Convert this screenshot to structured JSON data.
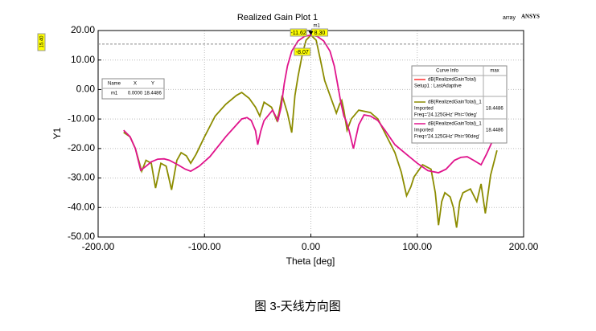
{
  "chart_data": {
    "type": "line",
    "title": "Realized Gain Plot 1",
    "corner_labels": [
      "array",
      "ANSYS"
    ],
    "x_label": "Theta [deg]",
    "y_label": "Y1",
    "xlim": [
      -200,
      200
    ],
    "xticks": [
      {
        "value": -200,
        "label": "-200.00"
      },
      {
        "value": -100,
        "label": "-100.00"
      },
      {
        "value": 0,
        "label": "0.00"
      },
      {
        "value": 100,
        "label": "100.00"
      },
      {
        "value": 200,
        "label": "200.00"
      }
    ],
    "ylim": [
      -50,
      20
    ],
    "yticks": [
      {
        "value": 20,
        "label": "20.00"
      },
      {
        "value": 10,
        "label": "10.00"
      },
      {
        "value": 0,
        "label": "0.00"
      },
      {
        "value": -10,
        "label": "-10.00"
      },
      {
        "value": -20,
        "label": "-20.00"
      },
      {
        "value": -30,
        "label": "-30.00"
      },
      {
        "value": -40,
        "label": "-40.00"
      },
      {
        "value": -50,
        "label": "-50.00"
      }
    ],
    "grid": true,
    "legend": {
      "position": "right",
      "headers": [
        "Curve Info",
        "max"
      ]
    },
    "reference_curve": {
      "name": "dB(RealizedGainTotal)",
      "info": [
        "Setup1 : LastAdaptive"
      ],
      "color": "#ff3030"
    },
    "series": [
      {
        "name": "dB(RealizedGainTotal)_1",
        "info": [
          "Imported",
          "Freq='24.125GHz' Phi='0deg'"
        ],
        "max_label": "18.4486",
        "color": "#8c8c00",
        "x": [
          -176,
          -170,
          -165,
          -159,
          -155,
          -150,
          -146,
          -141,
          -136,
          -131,
          -126,
          -122,
          -117,
          -113,
          -108,
          -100,
          -90,
          -80,
          -70,
          -65,
          -58,
          -52,
          -48,
          -44,
          -37,
          -32,
          -30,
          -27,
          -22,
          -18,
          -15,
          -12,
          -8,
          -4.5,
          0,
          5,
          9,
          13,
          18,
          22,
          24,
          27,
          29,
          31,
          34,
          38,
          45,
          56,
          63,
          70,
          79,
          85,
          90,
          94,
          97,
          105,
          113,
          117,
          120,
          123,
          126,
          131,
          134,
          137,
          140,
          143,
          150,
          156,
          160,
          164,
          169,
          175
        ],
        "values": [
          -14.5,
          -16,
          -20,
          -27.7,
          -24,
          -25,
          -33.4,
          -25,
          -26,
          -34,
          -24,
          -21.4,
          -22.5,
          -25,
          -22,
          -16,
          -9,
          -5,
          -2,
          -1,
          -3,
          -6,
          -9,
          -4.3,
          -6,
          -10.5,
          -8,
          -2,
          -8,
          -14.6,
          -2,
          4.5,
          12,
          16.7,
          18.4486,
          16.7,
          10,
          3,
          -2,
          -6,
          -8,
          -5,
          -3.7,
          -7,
          -13.8,
          -10,
          -7,
          -7.8,
          -10,
          -15,
          -21.4,
          -28,
          -36,
          -33,
          -29.6,
          -25.5,
          -27,
          -35,
          -46,
          -38,
          -35,
          -36.4,
          -40,
          -46.8,
          -38,
          -35,
          -33.7,
          -38,
          -32,
          -42,
          -29,
          -20.6
        ]
      },
      {
        "name": "dB(RealizedGainTotal)_1",
        "info": [
          "Imported",
          "Freq='24.125GHz' Phi='90deg'"
        ],
        "max_label": "18.4486",
        "color": "#e0148c",
        "x": [
          -176,
          -170,
          -165,
          -160,
          -155,
          -150,
          -144,
          -138,
          -133,
          -125,
          -118,
          -113,
          -105,
          -95,
          -80,
          -65,
          -60,
          -56,
          -52,
          -50,
          -47,
          -44,
          -36,
          -31,
          -28,
          -25,
          -22,
          -18,
          -12,
          -6,
          0,
          6,
          12,
          18,
          22,
          25,
          28,
          31,
          33,
          36,
          40,
          45,
          50,
          56,
          63,
          70,
          79,
          90,
          100,
          110,
          120,
          127,
          135,
          141,
          147,
          153,
          160,
          165,
          171,
          176
        ],
        "values": [
          -13.8,
          -16,
          -20,
          -27.4,
          -26,
          -24.5,
          -23.6,
          -23.5,
          -24,
          -25.5,
          -27,
          -27.7,
          -26,
          -22.8,
          -16,
          -10,
          -9.5,
          -10.5,
          -14,
          -18.7,
          -14,
          -10.5,
          -7,
          -10.5,
          -6,
          2,
          8,
          13,
          16.5,
          18,
          18.4486,
          18,
          16.5,
          13,
          8,
          2,
          -4,
          -9,
          -10.5,
          -14,
          -20,
          -12,
          -8.6,
          -9,
          -10.5,
          -14,
          -18.7,
          -22,
          -25,
          -27.5,
          -28.2,
          -27,
          -24,
          -23,
          -22.8,
          -24,
          -25.5,
          -22,
          -17.3,
          -13
        ]
      }
    ],
    "marker": {
      "name": "m1",
      "x": {
        "value": 0,
        "label": "0.0000"
      },
      "y": {
        "value": 18.4486,
        "label": "18.4486"
      }
    },
    "marker_table_headers": [
      "Name",
      "X",
      "Y"
    ],
    "hline": {
      "value": 15.4,
      "label": "15.40"
    },
    "crossings": [
      {
        "value": -11.62,
        "label": "-11.62"
      },
      {
        "value": 8.3,
        "label": "8.30"
      }
    ],
    "crossing_extra": {
      "value": -8.07,
      "label": "-8.07"
    },
    "caption": "图 3-天线方向图"
  }
}
